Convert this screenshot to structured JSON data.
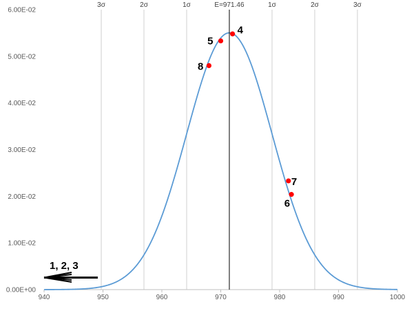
{
  "chart_data": {
    "type": "line",
    "title": "",
    "xlabel": "",
    "ylabel": "",
    "xlim": [
      940,
      1000
    ],
    "ylim": [
      0,
      0.06
    ],
    "x_ticks": [
      {
        "value": 940,
        "label": "940"
      },
      {
        "value": 950,
        "label": "950"
      },
      {
        "value": 960,
        "label": "960"
      },
      {
        "value": 970,
        "label": "970"
      },
      {
        "value": 980,
        "label": "980"
      },
      {
        "value": 990,
        "label": "990"
      },
      {
        "value": 1000,
        "label": "1000"
      }
    ],
    "y_ticks": [
      {
        "value": 0,
        "label": "0.00E+00"
      },
      {
        "value": 0.01,
        "label": "1.00E-02"
      },
      {
        "value": 0.02,
        "label": "2.00E-02"
      },
      {
        "value": 0.03,
        "label": "3.00E-02"
      },
      {
        "value": 0.04,
        "label": "4.00E-02"
      },
      {
        "value": 0.05,
        "label": "5.00E-02"
      },
      {
        "value": 0.06,
        "label": "6.00E-02"
      }
    ],
    "grid": "vertical sigma lines",
    "curve": {
      "type": "normal",
      "mean": 971.46,
      "sd": 7.25,
      "color": "#5B9BD5"
    },
    "mean_line": {
      "x": 971.46,
      "label": "E=971.46",
      "color": "#000000"
    },
    "sigma_lines": [
      {
        "x": 949.71,
        "label": "3σ"
      },
      {
        "x": 956.96,
        "label": "2σ"
      },
      {
        "x": 964.21,
        "label": "1σ"
      },
      {
        "x": 978.71,
        "label": "1σ"
      },
      {
        "x": 985.96,
        "label": "2σ"
      },
      {
        "x": 993.21,
        "label": "3σ"
      }
    ],
    "points": [
      {
        "label": "4",
        "x": 972.0,
        "y": 0.0548
      },
      {
        "label": "5",
        "x": 970.0,
        "y": 0.0533
      },
      {
        "label": "8",
        "x": 968.0,
        "y": 0.048
      },
      {
        "label": "7",
        "x": 981.5,
        "y": 0.0233
      },
      {
        "label": "6",
        "x": 982.0,
        "y": 0.0204
      }
    ],
    "point_color": "#FF0000",
    "annotation": {
      "text": "1, 2, 3"
    }
  }
}
